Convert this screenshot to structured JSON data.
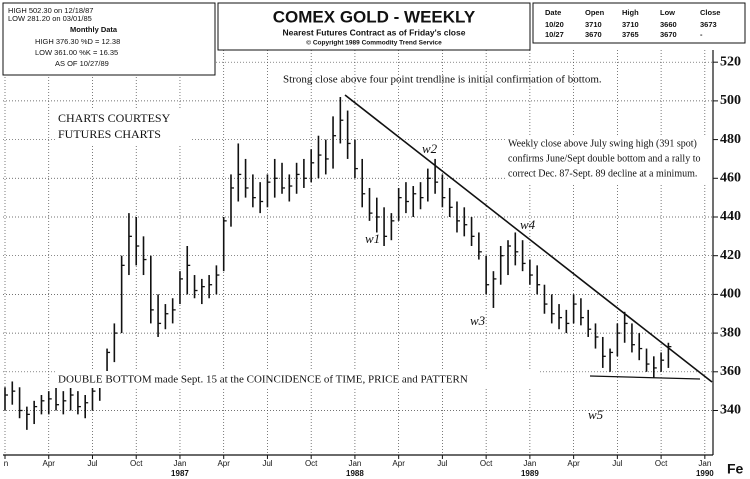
{
  "chart_data": {
    "type": "hlc",
    "title": "COMEX GOLD - WEEKLY",
    "subtitle": "Nearest Futures Contract as of Friday's close",
    "copyright": "© Copyright 1989 Commodity Trend Service",
    "info_box": [
      "HIGH 502.30 on 12/18/87",
      "LOW 281.20 on 03/01/85",
      "Monthly Data",
      "HIGH 376.30 %D = 12.38",
      "LOW 361.00 %K = 16.35",
      "AS OF 10/27/89"
    ],
    "quote_table": {
      "header": [
        "Date",
        "Open",
        "High",
        "Low",
        "Close"
      ],
      "rows": [
        [
          "10/20",
          "3710",
          "3710",
          "3660",
          "3673"
        ],
        [
          "10/27",
          "3670",
          "3765",
          "3670",
          "-"
        ]
      ]
    },
    "annotations": {
      "top": "Strong close above four point trendline is initial confirmation of bottom.",
      "courtesy": [
        "CHARTS COURTESY",
        "FUTURES CHARTS"
      ],
      "right": [
        "Weekly close above July swing high (391 spot)",
        "confirms June/Sept double bottom and a rally to",
        "correct Dec. 87-Sept. 89 decline at a minimum."
      ],
      "bottom": "DOUBLE BOTTOM made Sept. 15 at the COINCIDENCE of TIME, PRICE and PATTERN",
      "waves": [
        "w1",
        "w2",
        "w3",
        "w4",
        "w5"
      ],
      "corner": "Fe"
    },
    "categories": [
      "n",
      null,
      null,
      null,
      null,
      null,
      "Apr",
      null,
      null,
      null,
      null,
      null,
      "Jul",
      null,
      null,
      null,
      null,
      null,
      "Oct",
      null,
      null,
      null,
      null,
      null,
      "Jan",
      null,
      null,
      null,
      null,
      null,
      "Apr",
      null,
      null,
      null,
      null,
      null,
      "Jul",
      null,
      null,
      null,
      null,
      null,
      "Oct",
      null,
      null,
      null,
      null,
      null,
      "Jan",
      null,
      null,
      null,
      null,
      null,
      "Apr",
      null,
      null,
      null,
      null,
      null,
      "Jul",
      null,
      null,
      null,
      null,
      null,
      "Oct",
      null,
      null,
      null,
      null,
      null,
      "Jan",
      null,
      null,
      null,
      null,
      null,
      "Apr",
      null,
      null,
      null,
      null,
      null,
      "Jul",
      null,
      null,
      null,
      null,
      null,
      "Oct",
      null,
      null,
      null,
      null,
      null,
      "Jan",
      null,
      null
    ],
    "years": [
      "1987",
      "1988",
      "1989",
      "1990"
    ],
    "high": [
      352,
      355,
      352,
      342,
      345,
      348,
      350,
      352,
      350,
      352,
      350,
      348,
      352,
      358,
      372,
      385,
      420,
      442,
      440,
      430,
      420,
      400,
      395,
      398,
      412,
      425,
      410,
      408,
      410,
      415,
      440,
      462,
      478,
      470,
      462,
      458,
      462,
      470,
      468,
      462,
      468,
      470,
      475,
      482,
      480,
      492,
      502,
      495,
      480,
      470,
      455,
      450,
      445,
      442,
      455,
      458,
      456,
      458,
      465,
      470,
      462,
      455,
      448,
      445,
      440,
      432,
      420,
      412,
      425,
      428,
      432,
      428,
      418,
      415,
      405,
      400,
      395,
      392,
      400,
      398,
      392,
      385,
      378,
      372,
      385,
      391,
      385,
      380,
      372,
      368,
      370,
      375,
      null,
      null,
      null,
      null,
      null,
      null,
      null
    ],
    "low": [
      340,
      343,
      336,
      330,
      333,
      338,
      338,
      340,
      338,
      340,
      338,
      336,
      340,
      345,
      360,
      365,
      380,
      410,
      415,
      410,
      385,
      378,
      382,
      385,
      395,
      400,
      398,
      395,
      398,
      400,
      412,
      435,
      448,
      450,
      445,
      442,
      445,
      450,
      452,
      448,
      452,
      455,
      458,
      460,
      462,
      465,
      478,
      470,
      460,
      445,
      438,
      432,
      425,
      428,
      438,
      442,
      440,
      444,
      448,
      452,
      445,
      440,
      432,
      430,
      425,
      418,
      400,
      393,
      405,
      410,
      415,
      412,
      405,
      400,
      390,
      385,
      382,
      380,
      385,
      384,
      378,
      372,
      362,
      360,
      368,
      375,
      370,
      366,
      360,
      357,
      360,
      362,
      null,
      null,
      null,
      null,
      null,
      null,
      null
    ],
    "close": [
      348,
      350,
      340,
      338,
      342,
      345,
      346,
      343,
      345,
      348,
      342,
      344,
      350,
      355,
      370,
      380,
      415,
      430,
      425,
      418,
      392,
      385,
      390,
      392,
      408,
      415,
      402,
      404,
      405,
      410,
      438,
      455,
      462,
      455,
      450,
      448,
      458,
      460,
      455,
      456,
      462,
      460,
      468,
      472,
      470,
      482,
      490,
      478,
      465,
      452,
      442,
      440,
      430,
      438,
      450,
      448,
      452,
      450,
      460,
      458,
      450,
      445,
      438,
      436,
      430,
      422,
      405,
      408,
      420,
      425,
      422,
      416,
      410,
      405,
      395,
      390,
      388,
      385,
      395,
      388,
      382,
      378,
      368,
      370,
      380,
      385,
      374,
      372,
      364,
      362,
      366,
      373,
      null,
      null,
      null,
      null,
      null,
      null,
      null
    ],
    "color": "#111111",
    "ylim": [
      317,
      548
    ],
    "yticks": [
      340,
      360,
      380,
      400,
      420,
      440,
      460,
      480,
      500,
      520
    ],
    "grid": true
  }
}
